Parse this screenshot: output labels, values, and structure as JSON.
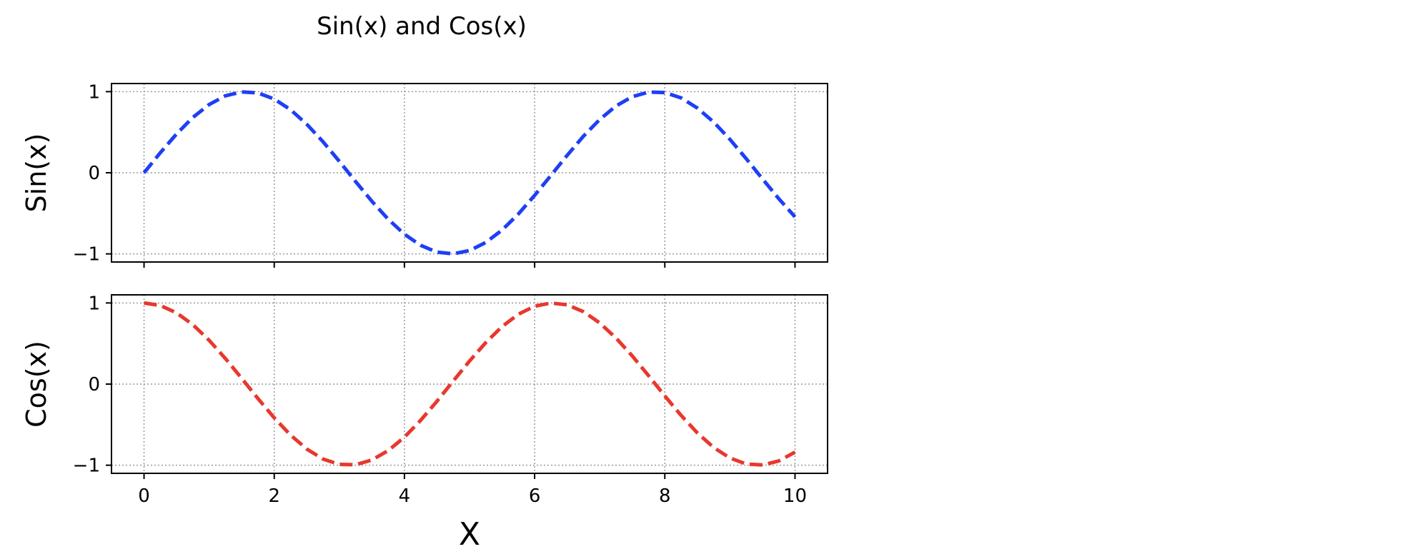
{
  "chart_data": [
    {
      "type": "line",
      "title": "Sin(x) and Cos(x)",
      "xlabel": "",
      "ylabel": "Sin(x)",
      "xlim": [
        -0.5,
        10.5
      ],
      "ylim": [
        -1.1,
        1.1
      ],
      "xticks": [
        0,
        2,
        4,
        6,
        8,
        10
      ],
      "xtick_labels_visible": false,
      "yticks": [
        1,
        0,
        -1
      ],
      "ytick_labels": [
        "1",
        "0",
        "−1"
      ],
      "grid": true,
      "series": [
        {
          "function": "sin",
          "color": "#1f3ff5",
          "linestyle": "dashed",
          "x": [
            0,
            0.25,
            0.5,
            0.75,
            1,
            1.25,
            1.5,
            1.75,
            2,
            2.25,
            2.5,
            2.75,
            3,
            3.25,
            3.5,
            3.75,
            4,
            4.25,
            4.5,
            4.75,
            5,
            5.25,
            5.5,
            5.75,
            6,
            6.25,
            6.5,
            6.75,
            7,
            7.25,
            7.5,
            7.75,
            8,
            8.25,
            8.5,
            8.75,
            9,
            9.25,
            9.5,
            9.75,
            10
          ],
          "y": [
            0,
            0.247,
            0.479,
            0.682,
            0.841,
            0.949,
            0.997,
            0.984,
            0.909,
            0.778,
            0.598,
            0.382,
            0.141,
            -0.108,
            -0.351,
            -0.572,
            -0.757,
            -0.895,
            -0.978,
            -0.999,
            -0.959,
            -0.859,
            -0.706,
            -0.508,
            -0.279,
            -0.033,
            0.215,
            0.451,
            0.657,
            0.823,
            0.938,
            0.994,
            0.989,
            0.923,
            0.798,
            0.625,
            0.412,
            0.174,
            -0.075,
            -0.319,
            -0.544
          ]
        }
      ]
    },
    {
      "type": "line",
      "title": "",
      "xlabel": "X",
      "ylabel": "Cos(x)",
      "xlim": [
        -0.5,
        10.5
      ],
      "ylim": [
        -1.1,
        1.1
      ],
      "xticks": [
        0,
        2,
        4,
        6,
        8,
        10
      ],
      "xtick_labels": [
        "0",
        "2",
        "4",
        "6",
        "8",
        "10"
      ],
      "xtick_labels_visible": true,
      "yticks": [
        1,
        0,
        -1
      ],
      "ytick_labels": [
        "1",
        "0",
        "−1"
      ],
      "grid": true,
      "series": [
        {
          "function": "cos",
          "color": "#e8382e",
          "linestyle": "dashed",
          "x": [
            0,
            0.25,
            0.5,
            0.75,
            1,
            1.25,
            1.5,
            1.75,
            2,
            2.25,
            2.5,
            2.75,
            3,
            3.25,
            3.5,
            3.75,
            4,
            4.25,
            4.5,
            4.75,
            5,
            5.25,
            5.5,
            5.75,
            6,
            6.25,
            6.5,
            6.75,
            7,
            7.25,
            7.5,
            7.75,
            8,
            8.25,
            8.5,
            8.75,
            9,
            9.25,
            9.5,
            9.75,
            10
          ],
          "y": [
            1,
            0.969,
            0.878,
            0.732,
            0.54,
            0.315,
            0.071,
            -0.178,
            -0.416,
            -0.628,
            -0.801,
            -0.924,
            -0.99,
            -0.994,
            -0.936,
            -0.82,
            -0.654,
            -0.446,
            -0.211,
            0.038,
            0.284,
            0.512,
            0.709,
            0.861,
            0.96,
            0.999,
            0.977,
            0.893,
            0.754,
            0.568,
            0.347,
            0.104,
            -0.146,
            -0.386,
            -0.602,
            -0.781,
            -0.911,
            -0.985,
            -0.997,
            -0.948,
            -0.839
          ]
        }
      ]
    }
  ]
}
